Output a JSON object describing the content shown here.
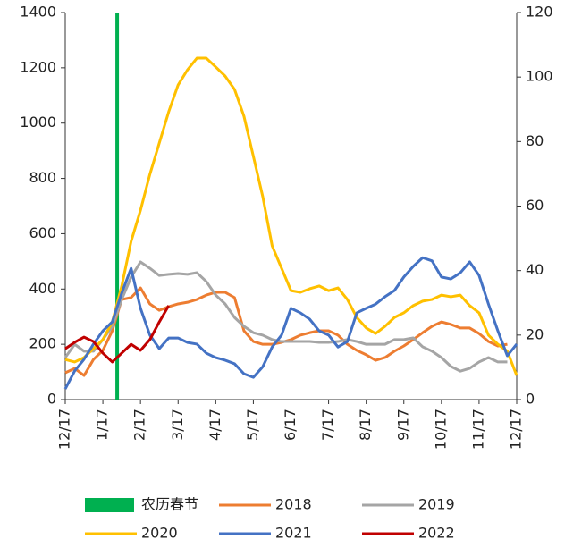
{
  "chart_data": {
    "type": "line",
    "x": [
      0,
      0.25,
      0.5,
      0.75,
      1,
      1.25,
      1.5,
      1.75,
      2,
      2.25,
      2.5,
      2.75,
      3,
      3.25,
      3.5,
      3.75,
      4,
      4.25,
      4.5,
      4.75,
      5,
      5.25,
      5.5,
      5.75,
      6,
      6.25,
      6.5,
      6.75,
      7,
      7.25,
      7.5,
      7.75,
      8,
      8.25,
      8.5,
      8.75,
      9,
      9.25,
      9.5,
      9.75,
      10,
      10.25,
      10.5,
      10.75,
      11,
      11.25,
      11.5,
      11.75,
      12
    ],
    "xlim": [
      0,
      12
    ],
    "xticks": [
      {
        "value": 0,
        "label": "12/17"
      },
      {
        "value": 1,
        "label": "1/17"
      },
      {
        "value": 2,
        "label": "2/17"
      },
      {
        "value": 3,
        "label": "3/17"
      },
      {
        "value": 4,
        "label": "4/17"
      },
      {
        "value": 5,
        "label": "5/17"
      },
      {
        "value": 6,
        "label": "6/17"
      },
      {
        "value": 7,
        "label": "7/17"
      },
      {
        "value": 8,
        "label": "8/17"
      },
      {
        "value": 9,
        "label": "9/17"
      },
      {
        "value": 10,
        "label": "10/17"
      },
      {
        "value": 11,
        "label": "11/17"
      },
      {
        "value": 12,
        "label": "12/17"
      }
    ],
    "ylim": [
      0,
      1400
    ],
    "yticks": [
      0,
      200,
      400,
      600,
      800,
      1000,
      1200,
      1400
    ],
    "y2lim": [
      0,
      120
    ],
    "y2ticks": [
      0,
      20,
      40,
      60,
      80,
      100,
      120
    ],
    "spring_festival": {
      "name": "农历春节",
      "x": 1.38,
      "color": "#00b050"
    },
    "series": [
      {
        "name": "2018",
        "color": "#ed7d31",
        "values": [
          97,
          113,
          87,
          145,
          178,
          249,
          362,
          369,
          404,
          346,
          323,
          336,
          346,
          352,
          362,
          378,
          388,
          388,
          369,
          249,
          210,
          200,
          200,
          207,
          217,
          233,
          242,
          249,
          249,
          233,
          200,
          178,
          162,
          142,
          152,
          175,
          194,
          217,
          242,
          265,
          281,
          272,
          259,
          259,
          239,
          210,
          194,
          200,
          null
        ]
      },
      {
        "name": "2019",
        "color": "#a5a5a5",
        "values": [
          152,
          200,
          175,
          175,
          217,
          265,
          362,
          443,
          498,
          475,
          449,
          453,
          456,
          453,
          459,
          427,
          378,
          346,
          297,
          265,
          242,
          233,
          217,
          210,
          210,
          210,
          210,
          207,
          207,
          210,
          217,
          210,
          200,
          200,
          200,
          217,
          217,
          223,
          191,
          175,
          152,
          120,
          103,
          113,
          136,
          152,
          136,
          136,
          null
        ]
      },
      {
        "name": "2020",
        "color": "#ffc000",
        "values": [
          145,
          136,
          152,
          184,
          217,
          281,
          410,
          572,
          685,
          815,
          928,
          1041,
          1138,
          1193,
          1235,
          1235,
          1203,
          1170,
          1122,
          1025,
          880,
          734,
          556,
          475,
          394,
          388,
          401,
          411,
          394,
          404,
          362,
          297,
          259,
          239,
          265,
          297,
          314,
          340,
          356,
          362,
          378,
          372,
          378,
          340,
          314,
          233,
          200,
          175,
          87
        ]
      },
      {
        "name": "2021",
        "color": "#4472c4",
        "axis": "y2",
        "values": [
          3.3,
          8.9,
          12.5,
          17.2,
          21.3,
          24.1,
          33,
          40.7,
          28.3,
          20,
          15.8,
          19.1,
          19.1,
          17.7,
          17.2,
          14.4,
          13,
          12.2,
          11.1,
          8,
          6.9,
          10.2,
          16.3,
          20,
          28.3,
          26.9,
          24.9,
          21.3,
          20,
          16.3,
          18,
          26.9,
          28.3,
          29.6,
          31.9,
          33.8,
          38,
          41.3,
          44,
          43,
          38,
          37.4,
          39.3,
          42.7,
          38.5,
          29.6,
          21.3,
          13.6,
          17.2
        ]
      },
      {
        "name": "2022",
        "color": "#c00000",
        "values": [
          184,
          207,
          226,
          210,
          168,
          136,
          168,
          200,
          178,
          217,
          281,
          340,
          null,
          null,
          null,
          null,
          null,
          null,
          null,
          null,
          null,
          null,
          null,
          null,
          null,
          null,
          null,
          null,
          null,
          null,
          null,
          null,
          null,
          null,
          null,
          null,
          null,
          null,
          null,
          null,
          null,
          null,
          null,
          null,
          null,
          null,
          null,
          null,
          null
        ]
      }
    ]
  }
}
